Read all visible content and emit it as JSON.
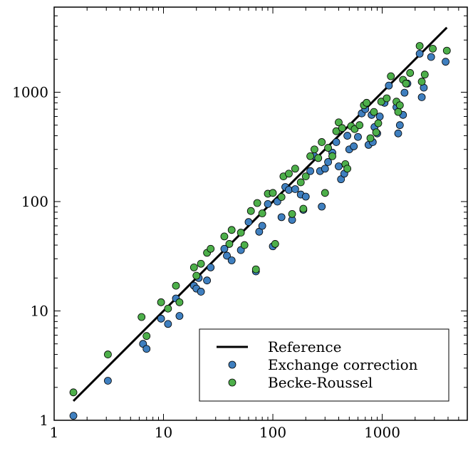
{
  "chart_data": {
    "type": "scatter",
    "x_scale": "log",
    "y_scale": "log",
    "xlim": [
      1,
      6000
    ],
    "ylim": [
      1,
      6000
    ],
    "grid": false,
    "legend_placement": "bottom-right",
    "x_ticks": [
      {
        "value": 1,
        "label": "1"
      },
      {
        "value": 10,
        "label": "10"
      },
      {
        "value": 100,
        "label": "100"
      },
      {
        "value": 1000,
        "label": "1000"
      }
    ],
    "y_ticks": [
      {
        "value": 1,
        "label": "1"
      },
      {
        "value": 10,
        "label": "10"
      },
      {
        "value": 100,
        "label": "100"
      },
      {
        "value": 1000,
        "label": "1000"
      }
    ],
    "reference_line": {
      "name": "Reference",
      "x": [
        1.5,
        3900
      ],
      "y": [
        1.5,
        3900
      ],
      "color": "#000000"
    },
    "series": [
      {
        "name": "Exchange correction",
        "color": "#3f7fbf",
        "points": [
          [
            1.5,
            1.1
          ],
          [
            3.1,
            2.3
          ],
          [
            6.5,
            5.0
          ],
          [
            7.0,
            4.5
          ],
          [
            9.5,
            8.5
          ],
          [
            11,
            7.6
          ],
          [
            13,
            13
          ],
          [
            14,
            9.0
          ],
          [
            19,
            17
          ],
          [
            20,
            16
          ],
          [
            21,
            20
          ],
          [
            22,
            15
          ],
          [
            25,
            19
          ],
          [
            27,
            25
          ],
          [
            36,
            37
          ],
          [
            38,
            32
          ],
          [
            42,
            29
          ],
          [
            51,
            36
          ],
          [
            60,
            65
          ],
          [
            70,
            23
          ],
          [
            75,
            53
          ],
          [
            80,
            60
          ],
          [
            90,
            95
          ],
          [
            100,
            39
          ],
          [
            110,
            100
          ],
          [
            120,
            72
          ],
          [
            130,
            136
          ],
          [
            140,
            128
          ],
          [
            150,
            68
          ],
          [
            160,
            130
          ],
          [
            180,
            116
          ],
          [
            190,
            84
          ],
          [
            200,
            111
          ],
          [
            220,
            190
          ],
          [
            240,
            260
          ],
          [
            270,
            190
          ],
          [
            280,
            90
          ],
          [
            300,
            200
          ],
          [
            320,
            230
          ],
          [
            350,
            280
          ],
          [
            380,
            350
          ],
          [
            400,
            210
          ],
          [
            420,
            160
          ],
          [
            450,
            180
          ],
          [
            480,
            400
          ],
          [
            500,
            300
          ],
          [
            550,
            320
          ],
          [
            600,
            390
          ],
          [
            650,
            640
          ],
          [
            700,
            700
          ],
          [
            750,
            330
          ],
          [
            800,
            620
          ],
          [
            820,
            350
          ],
          [
            850,
            480
          ],
          [
            900,
            420
          ],
          [
            950,
            600
          ],
          [
            1050,
            800
          ],
          [
            1150,
            1150
          ],
          [
            1350,
            730
          ],
          [
            1400,
            420
          ],
          [
            1450,
            500
          ],
          [
            1550,
            620
          ],
          [
            1600,
            990
          ],
          [
            1700,
            1200
          ],
          [
            2200,
            2250
          ],
          [
            2300,
            900
          ],
          [
            2400,
            1100
          ],
          [
            2800,
            2100
          ],
          [
            3800,
            1900
          ]
        ]
      },
      {
        "name": "Becke-Roussel",
        "color": "#4daf4a",
        "points": [
          [
            1.5,
            1.8
          ],
          [
            3.1,
            4.0
          ],
          [
            6.3,
            8.8
          ],
          [
            7.0,
            5.9
          ],
          [
            9.5,
            12
          ],
          [
            11,
            10.5
          ],
          [
            13,
            17
          ],
          [
            14,
            12
          ],
          [
            19,
            25
          ],
          [
            20,
            21
          ],
          [
            22,
            27
          ],
          [
            25,
            34
          ],
          [
            27,
            37
          ],
          [
            36,
            48
          ],
          [
            40,
            41
          ],
          [
            42,
            55
          ],
          [
            51,
            52
          ],
          [
            55,
            40
          ],
          [
            63,
            82
          ],
          [
            70,
            24
          ],
          [
            72,
            97
          ],
          [
            80,
            78
          ],
          [
            90,
            118
          ],
          [
            100,
            120
          ],
          [
            105,
            41
          ],
          [
            120,
            110
          ],
          [
            125,
            170
          ],
          [
            140,
            180
          ],
          [
            150,
            77
          ],
          [
            160,
            200
          ],
          [
            180,
            150
          ],
          [
            190,
            86
          ],
          [
            200,
            170
          ],
          [
            220,
            260
          ],
          [
            240,
            300
          ],
          [
            260,
            250
          ],
          [
            280,
            350
          ],
          [
            300,
            120
          ],
          [
            320,
            310
          ],
          [
            350,
            260
          ],
          [
            380,
            440
          ],
          [
            400,
            530
          ],
          [
            430,
            470
          ],
          [
            460,
            220
          ],
          [
            480,
            200
          ],
          [
            520,
            490
          ],
          [
            560,
            460
          ],
          [
            620,
            500
          ],
          [
            680,
            760
          ],
          [
            720,
            800
          ],
          [
            780,
            380
          ],
          [
            840,
            660
          ],
          [
            880,
            430
          ],
          [
            920,
            520
          ],
          [
            980,
            820
          ],
          [
            1100,
            880
          ],
          [
            1200,
            1400
          ],
          [
            1350,
            820
          ],
          [
            1400,
            660
          ],
          [
            1450,
            760
          ],
          [
            1550,
            1300
          ],
          [
            1650,
            1200
          ],
          [
            1800,
            1500
          ],
          [
            2200,
            2650
          ],
          [
            2300,
            1250
          ],
          [
            2450,
            1450
          ],
          [
            2900,
            2500
          ],
          [
            3900,
            2400
          ]
        ]
      }
    ]
  }
}
